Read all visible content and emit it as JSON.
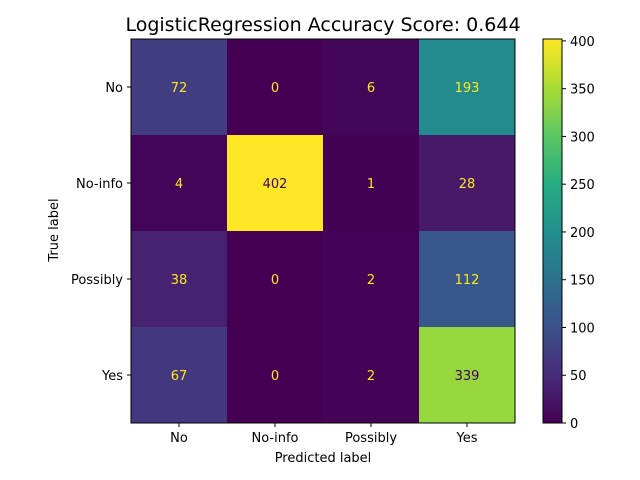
{
  "chart_data": {
    "type": "heatmap",
    "title": "LogisticRegression Accuracy Score: 0.644",
    "xlabel": "Predicted label",
    "ylabel": "True label",
    "x_categories": [
      "No",
      "No-info",
      "Possibly",
      "Yes"
    ],
    "y_categories": [
      "No",
      "No-info",
      "Possibly",
      "Yes"
    ],
    "values": [
      [
        72,
        0,
        6,
        193
      ],
      [
        4,
        402,
        1,
        28
      ],
      [
        38,
        0,
        2,
        112
      ],
      [
        67,
        0,
        2,
        339
      ]
    ],
    "colormap": "viridis",
    "value_range": [
      0,
      402
    ],
    "colorbar_ticks": [
      0,
      50,
      100,
      150,
      200,
      250,
      300,
      350,
      400
    ],
    "annotation_color_low": "#fde725",
    "annotation_color_high": "#440154",
    "grid": false
  }
}
